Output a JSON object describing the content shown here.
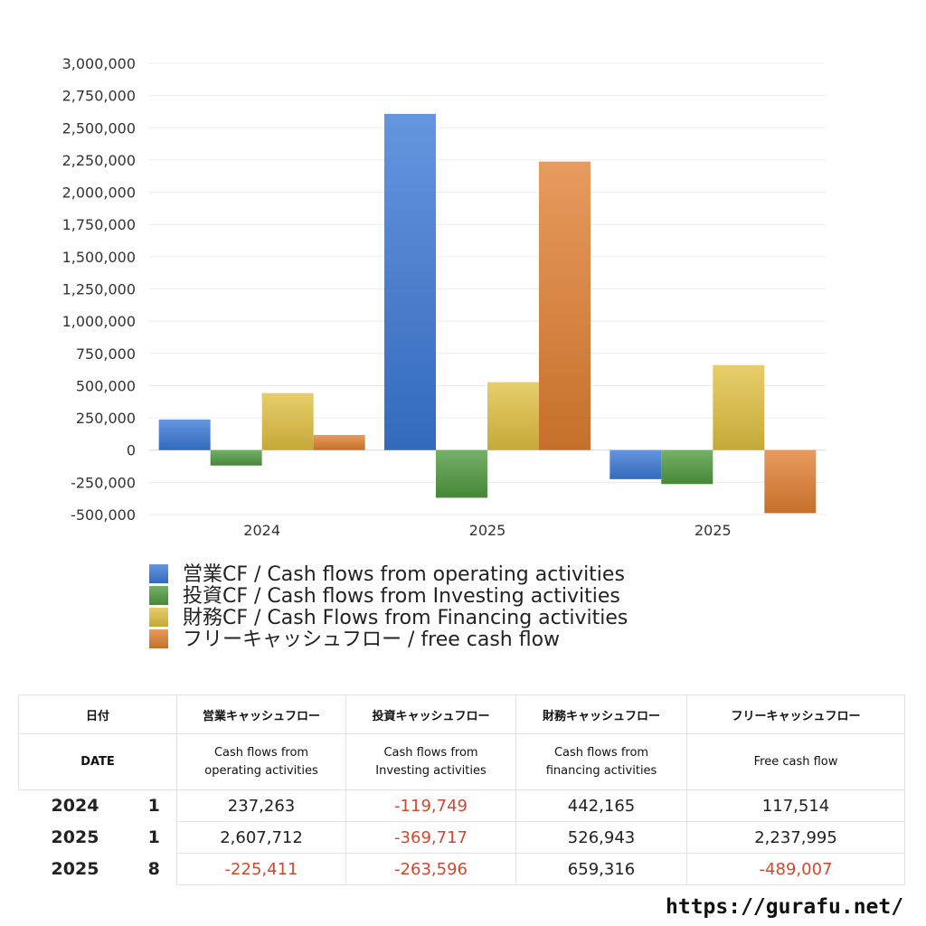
{
  "chart_data": {
    "type": "bar",
    "categories": [
      "2024",
      "2025",
      "2025"
    ],
    "series": [
      {
        "name": "営業CF / Cash flows from operating activities",
        "values": [
          237263,
          2607712,
          -225411
        ],
        "color": "#3a78d6"
      },
      {
        "name": "投資CF / Cash flows from Investing activities",
        "values": [
          -119749,
          -369717,
          -263596
        ],
        "color": "#4e9a3e"
      },
      {
        "name": "財務CF / Cash Flows from Financing activities",
        "values": [
          442165,
          526943,
          659316
        ],
        "color": "#e0c040"
      },
      {
        "name": "フリーキャッシュフロー / free cash flow",
        "values": [
          117514,
          2237995,
          -489007
        ],
        "color": "#e07f30"
      }
    ],
    "ylim": [
      -500000,
      3000000
    ],
    "yticks": [
      "3,000,000",
      "2,750,000",
      "2,500,000",
      "2,250,000",
      "2,000,000",
      "1,750,000",
      "1,500,000",
      "1,250,000",
      "1,000,000",
      "750,000",
      "500,000",
      "250,000",
      "0",
      "-250,000",
      "-500,000"
    ],
    "ytick_values": [
      3000000,
      2750000,
      2500000,
      2250000,
      2000000,
      1750000,
      1500000,
      1250000,
      1000000,
      750000,
      500000,
      250000,
      0,
      -250000,
      -500000
    ],
    "grid": true,
    "legend_position": "bottom"
  },
  "table": {
    "headers_ja": [
      "日付",
      "営業キャッシュフロー",
      "投資キャッシュフロー",
      "財務キャッシュフロー",
      "フリーキャッシュフロー"
    ],
    "headers_en": [
      "DATE",
      "Cash flows from operating activities",
      "Cash flows from Investing activities",
      "Cash flows from financing activities",
      "Free cash flow"
    ],
    "headers_en_lines": [
      [
        "DATE"
      ],
      [
        "Cash flows from",
        "operating activities"
      ],
      [
        "Cash flows from",
        "Investing activities"
      ],
      [
        "Cash flows from",
        "financing activities"
      ],
      [
        "Free cash flow"
      ]
    ],
    "rows": [
      {
        "year": "2024",
        "month": "1",
        "op": "237,263",
        "inv": "-119,749",
        "fin": "442,165",
        "free": "117,514"
      },
      {
        "year": "2025",
        "month": "1",
        "op": "2,607,712",
        "inv": "-369,717",
        "fin": "526,943",
        "free": "2,237,995"
      },
      {
        "year": "2025",
        "month": "8",
        "op": "-225,411",
        "inv": "-263,596",
        "fin": "659,316",
        "free": "-489,007"
      }
    ]
  },
  "footer": {
    "url": "https://gurafu.net/"
  }
}
